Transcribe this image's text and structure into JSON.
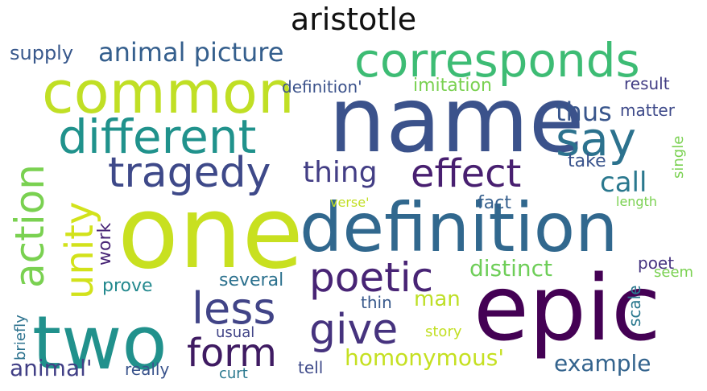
{
  "title": "aristotle",
  "words": [
    {
      "text": "name",
      "color": "#3b528b"
    },
    {
      "text": "one",
      "color": "#c8e020"
    },
    {
      "text": "epic",
      "color": "#440154"
    },
    {
      "text": "definition",
      "color": "#31688e"
    },
    {
      "text": "common",
      "color": "#c0df25"
    },
    {
      "text": "two",
      "color": "#21918c"
    },
    {
      "text": "corresponds",
      "color": "#3dbc74"
    },
    {
      "text": "different",
      "color": "#20928c"
    },
    {
      "text": "tragedy",
      "color": "#3e4989"
    },
    {
      "text": "action",
      "color": "#7ad151"
    },
    {
      "text": "unity",
      "color": "#d2e21b"
    },
    {
      "text": "say",
      "color": "#2c728e"
    },
    {
      "text": "effect",
      "color": "#481f70"
    },
    {
      "text": "less",
      "color": "#414487"
    },
    {
      "text": "give",
      "color": "#46337e"
    },
    {
      "text": "poetic",
      "color": "#482475"
    },
    {
      "text": "form",
      "color": "#3f1b62"
    },
    {
      "text": "thing",
      "color": "#433e85"
    },
    {
      "text": "animal picture",
      "color": "#355f8d"
    },
    {
      "text": "thus",
      "color": "#39568c"
    },
    {
      "text": "call",
      "color": "#2a788e"
    },
    {
      "text": "homonymous'",
      "color": "#c5e021"
    },
    {
      "text": "distinct",
      "color": "#6ece58"
    },
    {
      "text": "animal'",
      "color": "#424086"
    },
    {
      "text": "example",
      "color": "#33638d"
    },
    {
      "text": "man",
      "color": "#bddf26"
    },
    {
      "text": "supply",
      "color": "#38588c"
    },
    {
      "text": "definition'",
      "color": "#3b528b"
    },
    {
      "text": "imitation",
      "color": "#7ad151"
    },
    {
      "text": "result",
      "color": "#433e85"
    },
    {
      "text": "matter",
      "color": "#3e4a89"
    },
    {
      "text": "take",
      "color": "#3a548c"
    },
    {
      "text": "fact",
      "color": "#355f8d"
    },
    {
      "text": "work",
      "color": "#482576"
    },
    {
      "text": "several",
      "color": "#2c718e"
    },
    {
      "text": "prove",
      "color": "#23898e"
    },
    {
      "text": "poet",
      "color": "#463480"
    },
    {
      "text": "seem",
      "color": "#7ad151"
    },
    {
      "text": "thin",
      "color": "#38598c"
    },
    {
      "text": "scale",
      "color": "#2a788e"
    },
    {
      "text": "story",
      "color": "#c2df23"
    },
    {
      "text": "usual",
      "color": "#414487"
    },
    {
      "text": "really",
      "color": "#3a548c"
    },
    {
      "text": "curt",
      "color": "#2a788e"
    },
    {
      "text": "tell",
      "color": "#3e4a89"
    },
    {
      "text": "briefly",
      "color": "#2c728e"
    },
    {
      "text": "verse'",
      "color": "#c2df23"
    },
    {
      "text": "length",
      "color": "#7ad151"
    },
    {
      "text": "single",
      "color": "#7ad151"
    }
  ]
}
